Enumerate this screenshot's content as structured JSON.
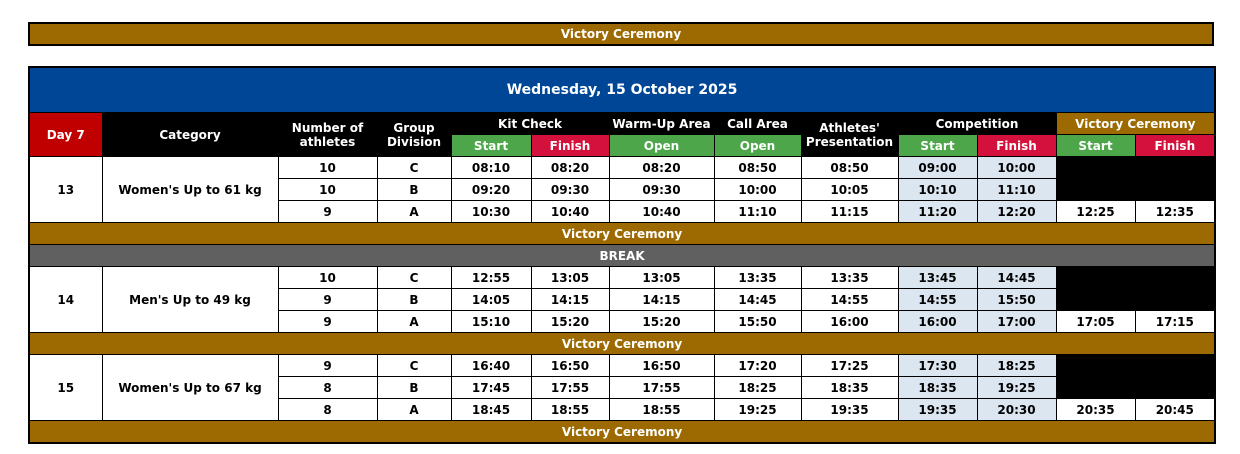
{
  "banner": "Victory Ceremony",
  "table": {
    "title": "Wednesday, 15 October 2025",
    "headers": {
      "day": "Day 7",
      "category": "Category",
      "athletes": "Number of athletes",
      "group": "Group Division",
      "kit": "Kit Check",
      "warmup": "Warm-Up Area",
      "call": "Call Area",
      "presentation": "Athletes' Presentation",
      "competition": "Competition",
      "victory": "Victory Ceremony",
      "sub": [
        "Start",
        "Finish",
        "Open",
        "Open",
        "Start",
        "Finish",
        "Start",
        "Finish"
      ]
    },
    "sessions": [
      {
        "number": 13,
        "category": "Women's Up to 61 kg",
        "rows": [
          [
            10,
            "C",
            "08:10",
            "08:20",
            "08:20",
            "08:50",
            "08:50",
            "09:00",
            "10:00"
          ],
          [
            10,
            "B",
            "09:20",
            "09:30",
            "09:30",
            "10:00",
            "10:05",
            "10:10",
            "11:10"
          ],
          [
            9,
            "A",
            "10:30",
            "10:40",
            "10:40",
            "11:10",
            "11:15",
            "11:20",
            "12:20",
            "12:25",
            "12:35"
          ]
        ],
        "after": [
          "Victory Ceremony",
          "BREAK"
        ]
      },
      {
        "number": 14,
        "category": "Men's Up to 49 kg",
        "rows": [
          [
            10,
            "C",
            "12:55",
            "13:05",
            "13:05",
            "13:35",
            "13:35",
            "13:45",
            "14:45"
          ],
          [
            9,
            "B",
            "14:05",
            "14:15",
            "14:15",
            "14:45",
            "14:55",
            "14:55",
            "15:50"
          ],
          [
            9,
            "A",
            "15:10",
            "15:20",
            "15:20",
            "15:50",
            "16:00",
            "16:00",
            "17:00",
            "17:05",
            "17:15"
          ]
        ],
        "after": [
          "Victory Ceremony"
        ]
      },
      {
        "number": 15,
        "category": "Women's Up to 67 kg",
        "rows": [
          [
            9,
            "C",
            "16:40",
            "16:50",
            "16:50",
            "17:20",
            "17:25",
            "17:30",
            "18:25"
          ],
          [
            8,
            "B",
            "17:45",
            "17:55",
            "17:55",
            "18:25",
            "18:35",
            "18:35",
            "19:25"
          ],
          [
            8,
            "A",
            "18:45",
            "18:55",
            "18:55",
            "19:25",
            "19:35",
            "19:35",
            "20:30",
            "20:35",
            "20:45"
          ]
        ],
        "after": [
          "Victory Ceremony"
        ]
      }
    ]
  }
}
